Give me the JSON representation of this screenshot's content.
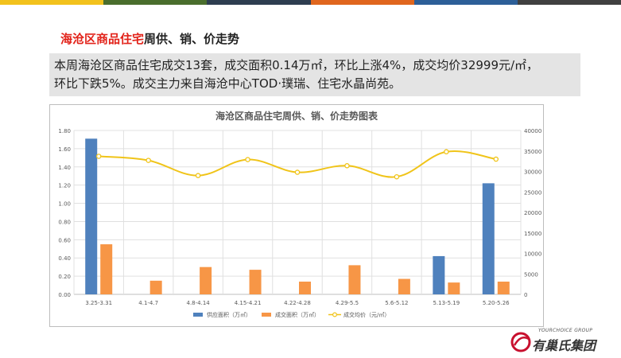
{
  "header_strip_colors": [
    "#f2c21d",
    "#4a6e2d",
    "#2e3e50",
    "#e0661e",
    "#2d5f98",
    "#404040"
  ],
  "heading": {
    "highlight": "海沧区商品住宅",
    "rest": "周供、销、价走势"
  },
  "summary": {
    "line1": "本周海沧区商品住宅成交13套，成交面积0.14万㎡，环比上涨4%，成交均价32999元/㎡，",
    "line2": "环比下跌5%。成交主力来自海沧中心TOD·璞瑞、住宅水晶尚苑。"
  },
  "logo": {
    "text_en": "YOURCHOICE GROUP",
    "text_cn": "有巢氏集团",
    "icon": "logo-circle-icon",
    "color": "#c8102e"
  },
  "chart_data": {
    "type": "bar",
    "title": "海沧区商品住宅周供、销、价走势图表",
    "categories": [
      "3.25-3.31",
      "4.1-4.7",
      "4.8-4.14",
      "4.15-4.21",
      "4.22-4.28",
      "4.29-5.5",
      "5.6-5.12",
      "5.13-5.19",
      "5.20-5.26"
    ],
    "series": [
      {
        "name": "供应面积（万㎡）",
        "type": "bar",
        "axis": "left",
        "color": "#4f81bd",
        "values": [
          1.71,
          0,
          0,
          0,
          0,
          0,
          0,
          0.42,
          1.22
        ]
      },
      {
        "name": "成交面积（万㎡）",
        "type": "bar",
        "axis": "left",
        "color": "#f79646",
        "values": [
          0.55,
          0.15,
          0.3,
          0.27,
          0.14,
          0.32,
          0.17,
          0.13,
          0.14
        ]
      },
      {
        "name": "成交均价（元/㎡）",
        "type": "line",
        "axis": "right",
        "color": "#f0c419",
        "values": [
          33700,
          32700,
          29000,
          32900,
          29800,
          31400,
          28700,
          34800,
          32999
        ]
      }
    ],
    "left_axis": {
      "min": 0,
      "max": 1.8,
      "step": 0.2,
      "tick_labels": [
        "0.00",
        "0.20",
        "0.40",
        "0.60",
        "0.80",
        "1.00",
        "1.20",
        "1.40",
        "1.60",
        "1.80"
      ]
    },
    "right_axis": {
      "min": 0,
      "max": 40000,
      "step": 5000,
      "tick_labels": [
        "0",
        "5000",
        "10000",
        "15000",
        "20000",
        "25000",
        "30000",
        "35000",
        "40000"
      ]
    },
    "legend_position": "bottom",
    "grid": true
  }
}
